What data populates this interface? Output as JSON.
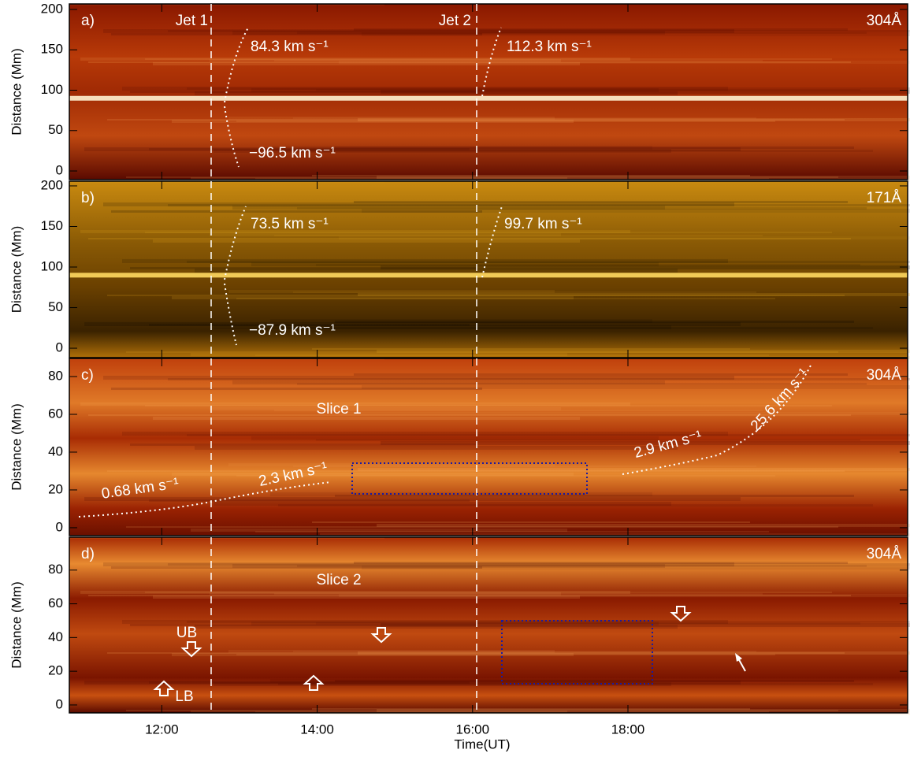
{
  "chart_data": [
    {
      "type": "heatmap",
      "panel_label": "a)",
      "channel": "304Å",
      "ylabel": "Distance (Mm)",
      "ylim": [
        -10.7,
        206.8
      ],
      "yticks": [
        0,
        50,
        100,
        150,
        200
      ],
      "xlim": [
        10.81,
        21.6
      ],
      "annotations": [
        "Jet 1",
        "Jet 2",
        "84.3 km s⁻¹",
        "−96.5 km s⁻¹",
        "112.3 km s⁻¹"
      ]
    },
    {
      "type": "heatmap",
      "panel_label": "b)",
      "channel": "171Å",
      "ylabel": "Distance (Mm)",
      "ylim": [
        -11.6,
        205.8
      ],
      "yticks": [
        0,
        50,
        100,
        150,
        200
      ],
      "xlim": [
        10.81,
        21.6
      ],
      "annotations": [
        "73.5 km s⁻¹",
        "−87.9 km s⁻¹",
        "99.7 km s⁻¹"
      ]
    },
    {
      "type": "heatmap",
      "panel_label": "c)",
      "channel": "304Å",
      "ylabel": "Distance (Mm)",
      "ylim": [
        -4.2,
        89.6
      ],
      "yticks": [
        0,
        20,
        40,
        60,
        80
      ],
      "xlim": [
        10.81,
        21.6
      ],
      "annotations": [
        "Slice 1",
        "0.68 km s⁻¹",
        "2.3 km s⁻¹",
        "2.9 km s⁻¹",
        "25.6 km s⁻¹"
      ]
    },
    {
      "type": "heatmap",
      "panel_label": "d)",
      "channel": "304Å",
      "ylabel": "Distance (Mm)",
      "ylim": [
        -4.7,
        99.5
      ],
      "yticks": [
        0,
        20,
        40,
        60,
        80
      ],
      "xlim": [
        10.81,
        21.6
      ],
      "xticks": [
        {
          "value": 12,
          "label": "12:00"
        },
        {
          "value": 14,
          "label": "14:00"
        },
        {
          "value": 16,
          "label": "16:00"
        },
        {
          "value": 18,
          "label": "18:00"
        }
      ],
      "xlabel": "Time(UT)",
      "annotations": [
        "Slice 2",
        "UB",
        "LB"
      ]
    }
  ]
}
